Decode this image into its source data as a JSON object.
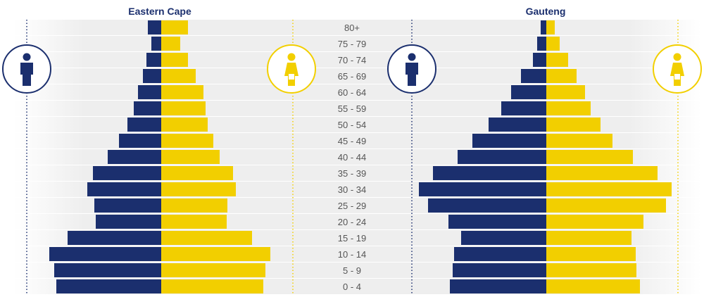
{
  "colors": {
    "male": "#1b2f6e",
    "female": "#f2cf00",
    "row_band": "#eeeeee",
    "row_divider": "#ffffff"
  },
  "icons": {
    "male": "male-person-icon",
    "female": "female-person-icon"
  },
  "chart_data": {
    "type": "bar",
    "orientation": "horizontal-population-pyramid",
    "categories": [
      "80+",
      "75 - 79",
      "70 - 74",
      "65 - 69",
      "60 - 64",
      "55 - 59",
      "50 - 54",
      "45 - 49",
      "40 - 44",
      "35 - 39",
      "30 - 34",
      "25 - 29",
      "20 - 24",
      "15 - 19",
      "10 - 14",
      "5 - 9",
      "0 - 4"
    ],
    "charts": [
      {
        "title": "Eastern Cape",
        "series": [
          {
            "key": "male",
            "values": [
              19,
              14,
              21,
              26,
              33,
              39,
              48,
              60,
              76,
              97,
              105,
              95,
              93,
              133,
              159,
              152,
              149
            ]
          },
          {
            "key": "female",
            "values": [
              38,
              27,
              38,
              49,
              60,
              63,
              66,
              74,
              83,
              102,
              106,
              94,
              93,
              129,
              155,
              148,
              145
            ]
          }
        ]
      },
      {
        "title": "Gauteng",
        "series": [
          {
            "key": "male",
            "values": [
              8,
              13,
              19,
              36,
              50,
              64,
              82,
              105,
              126,
              161,
              181,
              168,
              139,
              121,
              131,
              133,
              137
            ]
          },
          {
            "key": "female",
            "values": [
              12,
              19,
              31,
              43,
              55,
              63,
              77,
              94,
              123,
              158,
              178,
              170,
              138,
              121,
              127,
              128,
              133
            ]
          }
        ]
      }
    ]
  }
}
